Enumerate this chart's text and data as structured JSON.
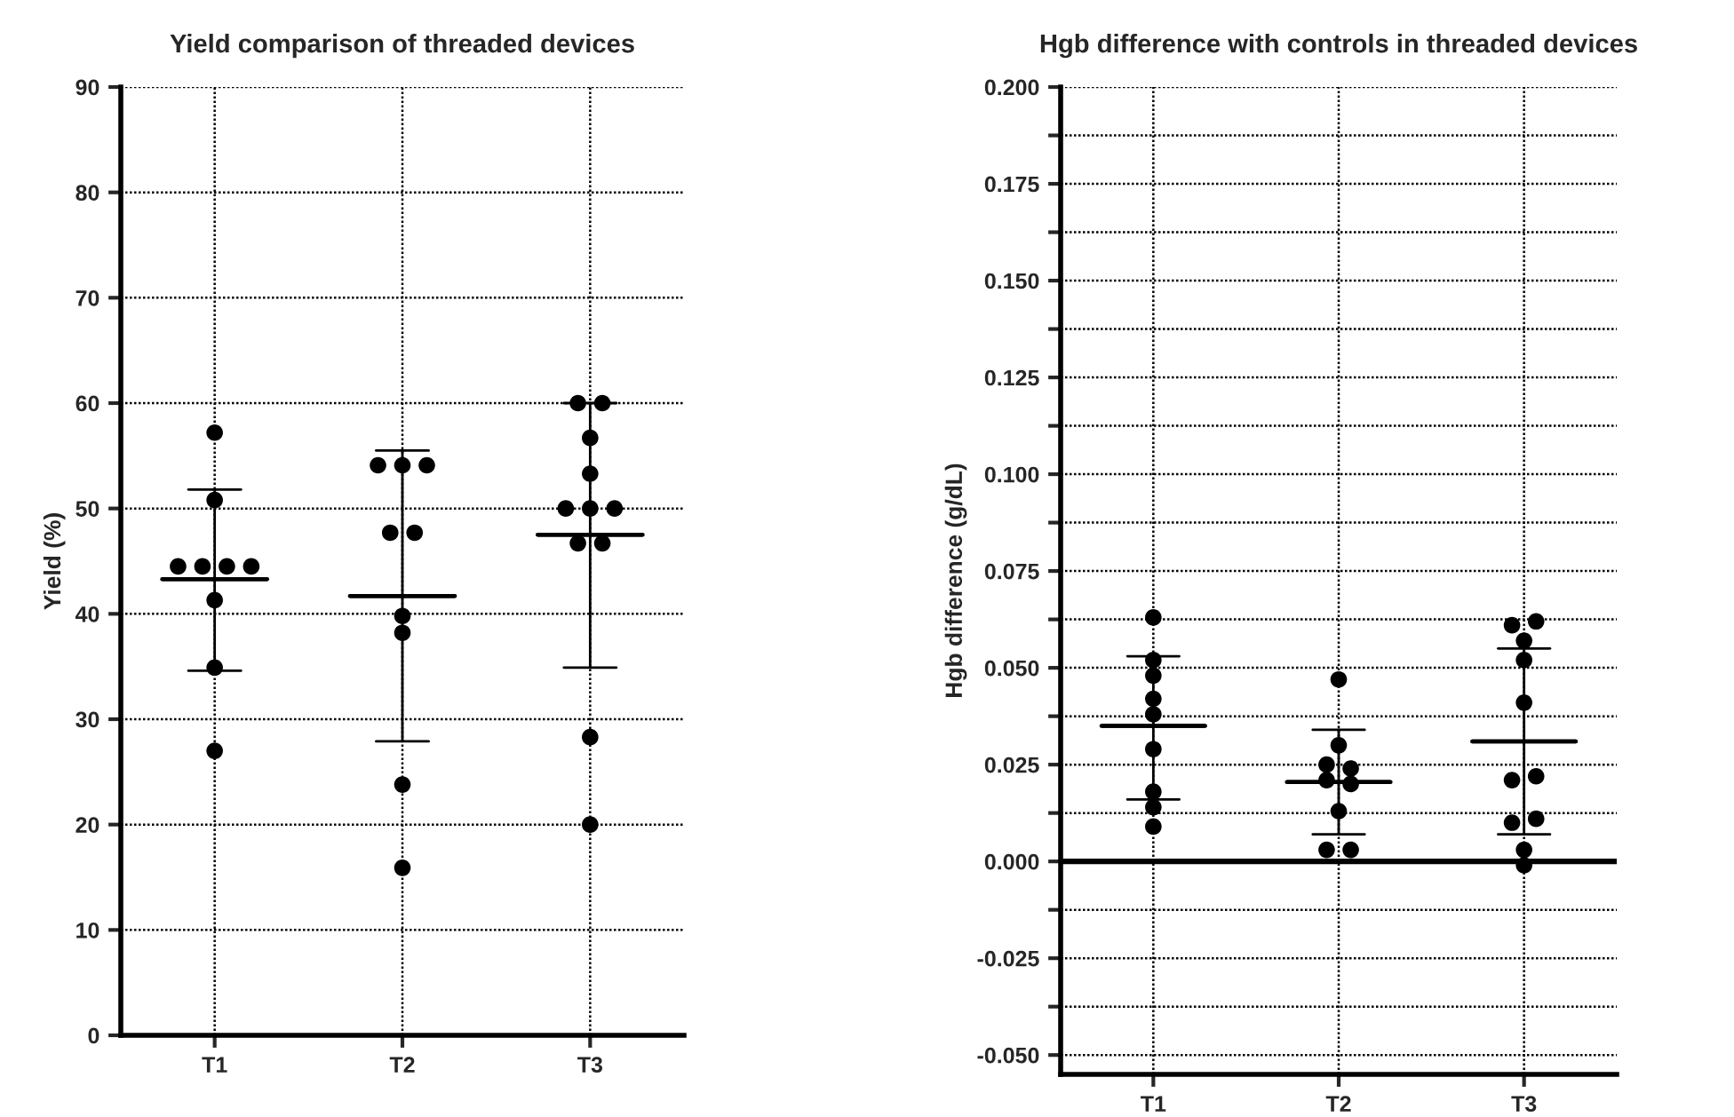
{
  "chart_data": [
    {
      "type": "scatter",
      "title": "Yield comparison of threaded devices",
      "ylabel": "Yield (%)",
      "categories": [
        "T1",
        "T2",
        "T3"
      ],
      "ylim": [
        0,
        90
      ],
      "yticks": [
        0,
        10,
        20,
        30,
        40,
        50,
        60,
        70,
        80,
        90
      ],
      "grid": true,
      "legend": false,
      "series": [
        {
          "marker": "circle",
          "color": "#000000",
          "x": [
            "T1",
            "T1",
            "T1",
            "T1",
            "T1",
            "T1",
            "T1",
            "T1",
            "T1",
            "T2",
            "T2",
            "T2",
            "T2",
            "T2",
            "T2",
            "T2",
            "T2",
            "T2",
            "T3",
            "T3",
            "T3",
            "T3",
            "T3",
            "T3",
            "T3",
            "T3",
            "T3",
            "T3",
            "T3"
          ],
          "values": [
            57.2,
            50.8,
            44.5,
            44.5,
            44.5,
            44.5,
            41.3,
            34.9,
            27.0,
            54.1,
            54.1,
            54.1,
            47.7,
            47.7,
            39.8,
            38.2,
            23.8,
            15.9,
            60.0,
            60.0,
            56.7,
            53.3,
            50.0,
            50.0,
            50.0,
            46.7,
            46.7,
            28.3,
            20.0
          ]
        },
        {
          "type": "box",
          "color": "#000000",
          "boxes": [
            {
              "low": 34.6,
              "q1": 43.3,
              "median": 43.3,
              "q3": 43.3,
              "high": 51.8
            },
            {
              "low": 27.9,
              "q1": 41.7,
              "median": 41.7,
              "q3": 41.7,
              "high": 55.5
            },
            {
              "low": 34.9,
              "q1": 47.5,
              "median": 47.5,
              "q3": 47.5,
              "high": 60.0
            }
          ]
        }
      ]
    },
    {
      "type": "scatter",
      "title": "Hgb difference with controls in threaded devices",
      "ylabel": "Hgb difference (g/dL)",
      "categories": [
        "T1",
        "T2",
        "T3"
      ],
      "ylim": [
        -0.055,
        0.2
      ],
      "yticks": [
        {
          "value": -0.05,
          "label": "-0.050"
        },
        {
          "value": -0.0375,
          "label": null
        },
        {
          "value": -0.025,
          "label": "-0.025"
        },
        {
          "value": -0.0125,
          "label": null
        },
        {
          "value": 0,
          "label": "0.000"
        },
        {
          "value": 0.0125,
          "label": null
        },
        {
          "value": 0.025,
          "label": "0.025"
        },
        {
          "value": 0.0375,
          "label": null
        },
        {
          "value": 0.05,
          "label": "0.050"
        },
        {
          "value": 0.0625,
          "label": null
        },
        {
          "value": 0.075,
          "label": "0.075"
        },
        {
          "value": 0.0875,
          "label": null
        },
        {
          "value": 0.1,
          "label": "0.100"
        },
        {
          "value": 0.1125,
          "label": null
        },
        {
          "value": 0.125,
          "label": "0.125"
        },
        {
          "value": 0.1375,
          "label": null
        },
        {
          "value": 0.15,
          "label": "0.150"
        },
        {
          "value": 0.1625,
          "label": null
        },
        {
          "value": 0.175,
          "label": "0.175"
        },
        {
          "value": 0.1875,
          "label": null
        },
        {
          "value": 0.2,
          "label": "0.200"
        }
      ],
      "grid": true,
      "legend": false,
      "ref_lines": [
        {
          "axis": "y",
          "value": 0,
          "color": "#000000",
          "line_style": "solid"
        }
      ],
      "series": [
        {
          "marker": "circle",
          "color": "#000000",
          "x": [
            "T1",
            "T1",
            "T1",
            "T1",
            "T1",
            "T1",
            "T1",
            "T1",
            "T1",
            "T2",
            "T2",
            "T2",
            "T2",
            "T2",
            "T2",
            "T2",
            "T2",
            "T2",
            "T3",
            "T3",
            "T3",
            "T3",
            "T3",
            "T3",
            "T3",
            "T3",
            "T3",
            "T3",
            "T3"
          ],
          "values": [
            0.063,
            0.052,
            0.048,
            0.042,
            0.038,
            0.029,
            0.018,
            0.014,
            0.009,
            0.047,
            0.03,
            0.025,
            0.024,
            0.021,
            0.02,
            0.013,
            0.003,
            0.003,
            0.061,
            0.062,
            0.057,
            0.052,
            0.041,
            0.021,
            0.022,
            0.01,
            0.011,
            0.003,
            -0.001
          ]
        },
        {
          "type": "box",
          "color": "#000000",
          "boxes": [
            {
              "low": 0.016,
              "q1": 0.035,
              "median": 0.035,
              "q3": 0.035,
              "high": 0.053
            },
            {
              "low": 0.007,
              "q1": 0.0205,
              "median": 0.0205,
              "q3": 0.0205,
              "high": 0.034
            },
            {
              "low": 0.007,
              "q1": 0.031,
              "median": 0.031,
              "q3": 0.031,
              "high": 0.055
            }
          ]
        }
      ]
    }
  ]
}
